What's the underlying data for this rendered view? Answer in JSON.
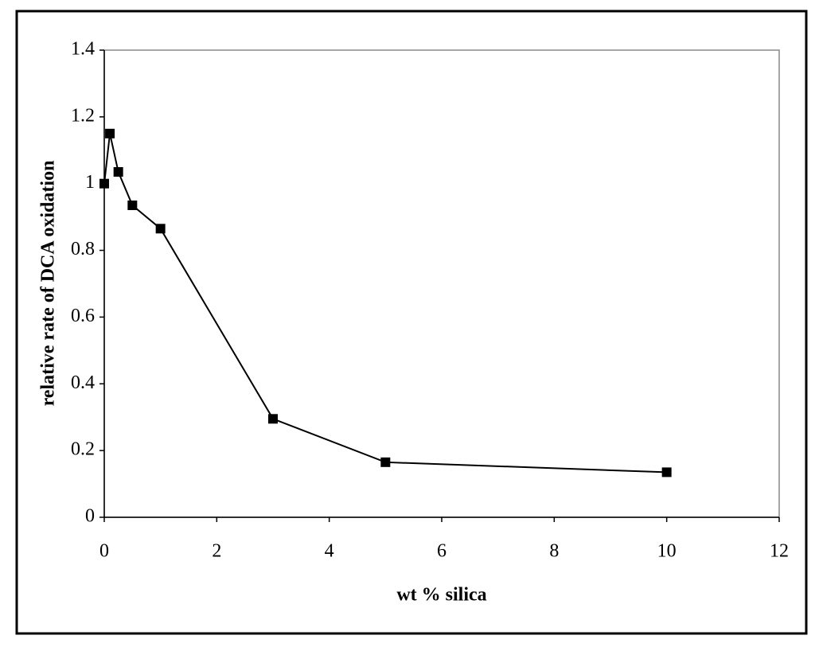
{
  "chart_data": {
    "type": "line",
    "x_label": "wt % silica",
    "y_label": "relative rate of DCA oxidation",
    "x": [
      0,
      0.1,
      0.25,
      0.5,
      1,
      3,
      5,
      10
    ],
    "series": [
      {
        "color": "#000000",
        "values": [
          1.0,
          1.15,
          1.035,
          0.935,
          0.865,
          0.295,
          0.165,
          0.135
        ]
      }
    ],
    "xlim": [
      0,
      12
    ],
    "xticks": [
      0,
      2,
      4,
      6,
      8,
      10,
      12
    ],
    "ylim": [
      0,
      1.4
    ],
    "yticks": [
      0,
      0.2,
      0.4,
      0.6,
      0.8,
      1,
      1.2,
      1.4
    ],
    "grid": false
  }
}
